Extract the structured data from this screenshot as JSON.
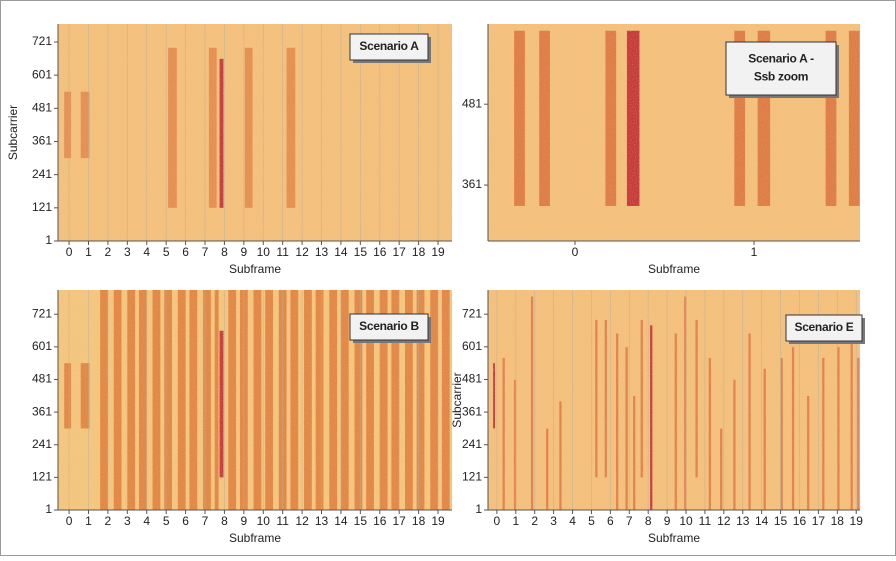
{
  "chart_data": [
    {
      "type": "heatmap",
      "annotation": [
        "Scenario A"
      ],
      "xlabel": "Subframe",
      "ylabel": "Subcarrier",
      "xlim": [
        -0.57,
        19.72
      ],
      "ylim": [
        1,
        786
      ],
      "xticks": [
        0,
        1,
        2,
        3,
        4,
        5,
        6,
        7,
        8,
        9,
        10,
        11,
        12,
        13,
        14,
        15,
        16,
        17,
        18,
        19
      ],
      "yticks": [
        1,
        121,
        241,
        361,
        481,
        601,
        721
      ],
      "grid": true,
      "background": "#f4c27f",
      "band_color": "#e38a4e",
      "dark_color": "#c02a36",
      "bands": [
        [
          -0.25,
          0.1,
          301,
          541
        ],
        [
          0.6,
          1.05,
          301,
          541
        ],
        [
          5.1,
          5.55,
          121,
          700
        ],
        [
          7.2,
          7.6,
          121,
          700
        ],
        [
          9.05,
          9.45,
          121,
          700
        ],
        [
          11.2,
          11.65,
          121,
          700
        ]
      ],
      "dark_bands": [
        [
          7.75,
          7.95,
          121,
          660
        ]
      ]
    },
    {
      "type": "heatmap",
      "annotation": [
        "Scenario A -",
        "Ssb zoom"
      ],
      "xlabel": "Subframe",
      "xlim": [
        -0.486,
        1.592
      ],
      "ylim": [
        278,
        600
      ],
      "xticks": [
        0,
        1
      ],
      "yticks": [
        361,
        481
      ],
      "grid": false,
      "background": "#f4c27f",
      "band_color": "#dc7440",
      "dark_color": "#c02a36",
      "bands": [
        [
          -0.34,
          -0.28,
          330,
          590
        ],
        [
          -0.2,
          -0.14,
          330,
          590
        ],
        [
          0.17,
          0.23,
          330,
          590
        ],
        [
          0.89,
          0.95,
          330,
          590
        ],
        [
          1.02,
          1.09,
          330,
          590
        ],
        [
          1.4,
          1.46,
          330,
          590
        ],
        [
          1.53,
          1.59,
          330,
          590
        ]
      ],
      "dark_bands": [
        [
          0.29,
          0.36,
          330,
          590
        ]
      ]
    },
    {
      "type": "heatmap",
      "annotation": [
        "Scenario B"
      ],
      "xlabel": "Subframe",
      "xlim": [
        -0.57,
        19.72
      ],
      "ylim": [
        1,
        810
      ],
      "xticks": [
        0,
        1,
        2,
        3,
        4,
        5,
        6,
        7,
        8,
        9,
        10,
        11,
        12,
        13,
        14,
        15,
        16,
        17,
        18,
        19
      ],
      "yticks": [
        1,
        121,
        241,
        361,
        481,
        601,
        721
      ],
      "grid": true,
      "background": "#f4c880",
      "band_color": "#e0803f",
      "dark_color": "#c02a36",
      "bands": [
        [
          -0.25,
          0.1,
          301,
          541
        ],
        [
          0.6,
          1.05,
          301,
          541
        ],
        [
          1.6,
          2.0,
          1,
          810
        ],
        [
          2.3,
          2.7,
          1,
          810
        ],
        [
          3.0,
          3.4,
          1,
          810
        ],
        [
          3.6,
          4.0,
          1,
          810
        ],
        [
          4.3,
          4.7,
          1,
          810
        ],
        [
          4.9,
          5.3,
          1,
          810
        ],
        [
          5.6,
          6.0,
          1,
          810
        ],
        [
          6.2,
          6.6,
          1,
          810
        ],
        [
          6.9,
          7.3,
          1,
          810
        ],
        [
          7.5,
          7.7,
          1,
          810
        ],
        [
          8.2,
          8.6,
          1,
          810
        ],
        [
          8.8,
          9.2,
          1,
          810
        ],
        [
          9.5,
          9.9,
          1,
          810
        ],
        [
          10.1,
          10.5,
          1,
          810
        ],
        [
          10.8,
          11.2,
          1,
          810
        ],
        [
          11.4,
          11.8,
          1,
          810
        ],
        [
          12.1,
          12.5,
          1,
          810
        ],
        [
          12.7,
          13.1,
          1,
          810
        ],
        [
          13.4,
          13.8,
          1,
          810
        ],
        [
          14.0,
          14.4,
          1,
          810
        ],
        [
          14.7,
          15.1,
          1,
          810
        ],
        [
          15.3,
          15.7,
          1,
          810
        ],
        [
          16.0,
          16.4,
          1,
          810
        ],
        [
          16.6,
          17.0,
          1,
          810
        ],
        [
          17.3,
          17.7,
          1,
          810
        ],
        [
          17.9,
          18.3,
          1,
          810
        ],
        [
          18.6,
          19.0,
          1,
          810
        ],
        [
          19.2,
          19.6,
          1,
          810
        ]
      ],
      "dark_bands": [
        [
          7.75,
          7.95,
          121,
          660
        ]
      ]
    },
    {
      "type": "heatmap",
      "annotation": [
        "Scenario E"
      ],
      "xlabel": "Subframe",
      "ylabel": "Subcarrier",
      "xlim": [
        -0.47,
        19.2
      ],
      "ylim": [
        1,
        810
      ],
      "xticks": [
        0,
        1,
        2,
        3,
        4,
        5,
        6,
        7,
        8,
        9,
        10,
        11,
        12,
        13,
        14,
        15,
        16,
        17,
        18,
        19
      ],
      "yticks": [
        1,
        121,
        241,
        361,
        481,
        601,
        721
      ],
      "grid": true,
      "background": "#f4c27f",
      "band_color": "#e07a48",
      "dark_color": "#c02a36",
      "bands": [
        [
          0.3,
          0.42,
          1,
          560
        ],
        [
          0.9,
          1.02,
          1,
          480
        ],
        [
          1.8,
          1.92,
          1,
          786
        ],
        [
          2.6,
          2.72,
          1,
          300
        ],
        [
          3.3,
          3.42,
          1,
          400
        ],
        [
          5.2,
          5.32,
          121,
          700
        ],
        [
          5.7,
          5.82,
          121,
          700
        ],
        [
          6.3,
          6.42,
          1,
          650
        ],
        [
          6.8,
          6.92,
          1,
          600
        ],
        [
          7.2,
          7.32,
          1,
          420
        ],
        [
          7.6,
          7.72,
          121,
          700
        ],
        [
          9.4,
          9.52,
          1,
          650
        ],
        [
          9.9,
          10.02,
          1,
          786
        ],
        [
          10.5,
          10.62,
          121,
          700
        ],
        [
          11.2,
          11.32,
          1,
          560
        ],
        [
          11.8,
          11.92,
          1,
          300
        ],
        [
          12.5,
          12.62,
          1,
          480
        ],
        [
          13.3,
          13.42,
          1,
          650
        ],
        [
          14.1,
          14.22,
          1,
          520
        ],
        [
          15.0,
          15.12,
          1,
          560
        ],
        [
          15.6,
          15.72,
          1,
          600
        ],
        [
          16.4,
          16.52,
          1,
          420
        ],
        [
          17.2,
          17.32,
          1,
          560
        ],
        [
          18.0,
          18.12,
          1,
          600
        ],
        [
          18.7,
          18.82,
          1,
          640
        ],
        [
          19.05,
          19.17,
          1,
          560
        ]
      ],
      "dark_bands": [
        [
          -0.2,
          -0.1,
          301,
          541
        ],
        [
          8.1,
          8.22,
          1,
          680
        ]
      ]
    }
  ]
}
